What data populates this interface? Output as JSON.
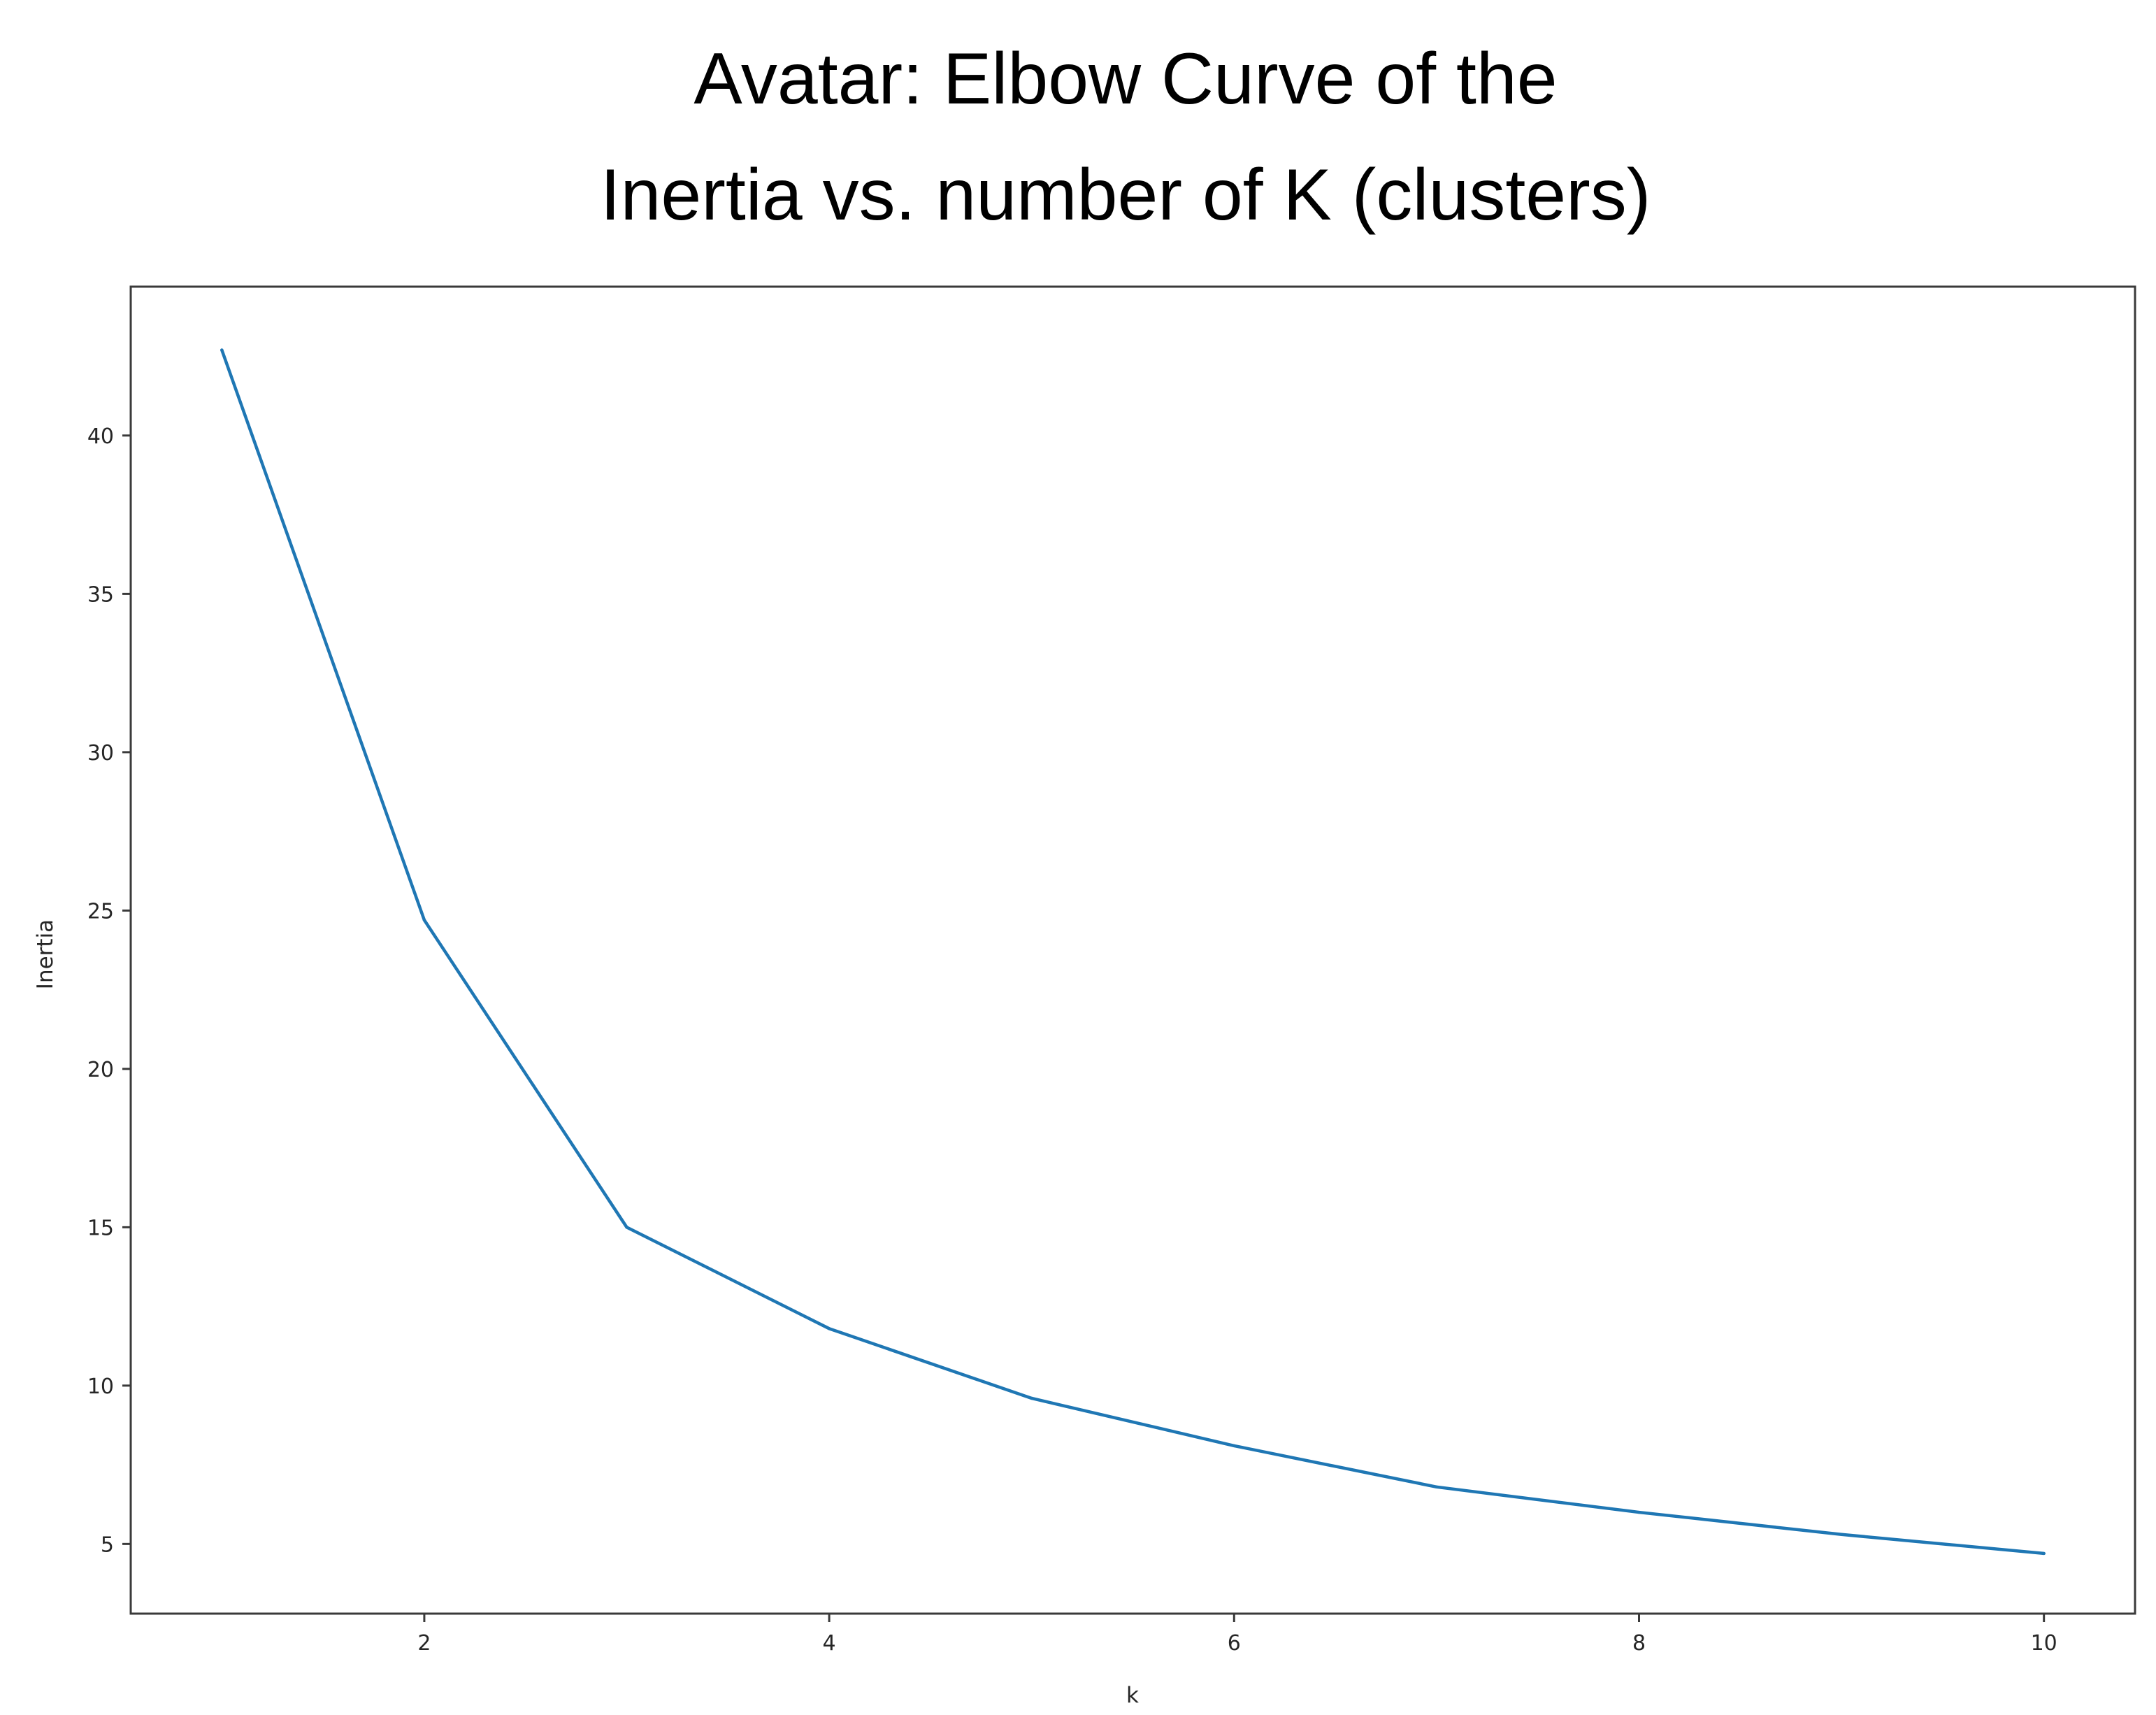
{
  "chart_data": {
    "type": "line",
    "title_lines": [
      "Avatar: Elbow Curve of the",
      "Inertia vs. number of K (clusters)"
    ],
    "xlabel": "k",
    "ylabel": "Inertia",
    "xlim": [
      0.55,
      10.45
    ],
    "ylim": [
      2.8,
      44.7
    ],
    "xticks": [
      2,
      4,
      6,
      8,
      10
    ],
    "yticks": [
      5,
      10,
      15,
      20,
      25,
      30,
      35,
      40
    ],
    "grid": false,
    "legend": "none",
    "line_color": "#1f77b4",
    "series": [
      {
        "x": [
          1,
          2,
          3,
          4,
          5,
          6,
          7,
          8,
          9,
          10
        ],
        "values": [
          42.7,
          24.7,
          15.0,
          11.8,
          9.6,
          8.1,
          6.8,
          6.0,
          5.3,
          4.7
        ]
      }
    ]
  }
}
